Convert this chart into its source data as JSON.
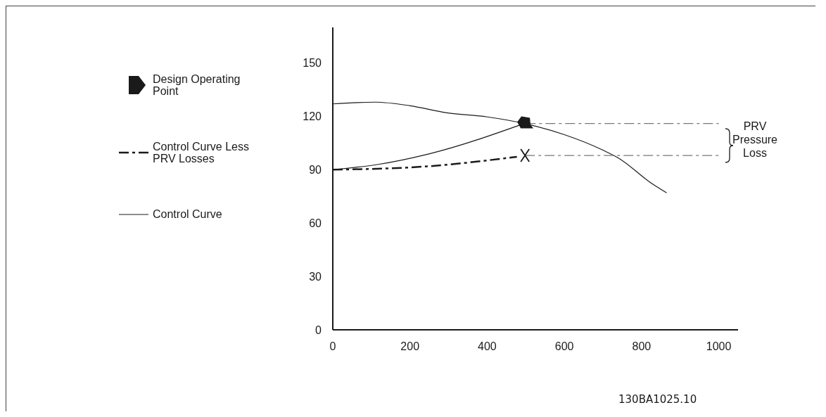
{
  "chart_data": {
    "type": "line",
    "series": [
      {
        "color": "#1a1a1a",
        "x": [
          0,
          110,
          200,
          295,
          400,
          496,
          600,
          700,
          740,
          828,
          865
        ],
        "values": [
          127,
          128,
          126,
          122,
          119.7,
          116,
          109.7,
          101,
          96.6,
          82,
          77
        ]
      },
      {
        "name": "Design Operating Point",
        "type": "scatter",
        "color": "#1a1a1a",
        "x": [
          496
        ],
        "values": [
          116
        ]
      },
      {
        "name": "Control Curve Less PRV Losses",
        "color": "#1a1a1a",
        "line_style": "dashed",
        "x": [
          0,
          251,
          477
        ],
        "values": [
          90,
          92,
          97.3
        ]
      },
      {
        "name": "Control Curve",
        "color": "#1a1a1a",
        "x": [
          0,
          118,
          251,
          496
        ],
        "values": [
          90,
          93,
          99,
          116
        ]
      },
      {
        "type": "scatter",
        "marker": "cross",
        "color": "#1a1a1a",
        "x": [
          498
        ],
        "values": [
          98
        ]
      },
      {
        "color": "#777777",
        "line_style": "dashed",
        "x": [
          500,
          1000
        ],
        "values": [
          116,
          116
        ]
      },
      {
        "color": "#777777",
        "line_style": "dashed",
        "x": [
          498,
          1000
        ],
        "values": [
          98,
          98
        ]
      }
    ],
    "xlim": [
      0,
      1050
    ],
    "xticks": [
      0,
      200,
      400,
      600,
      800,
      1000
    ],
    "ylim": [
      0,
      170
    ],
    "yticks": [
      0,
      30,
      60,
      90,
      120,
      150
    ],
    "grid": false,
    "legend": "left",
    "annotations": [
      "PRV Pressure Loss",
      "130BA1025.10"
    ]
  }
}
